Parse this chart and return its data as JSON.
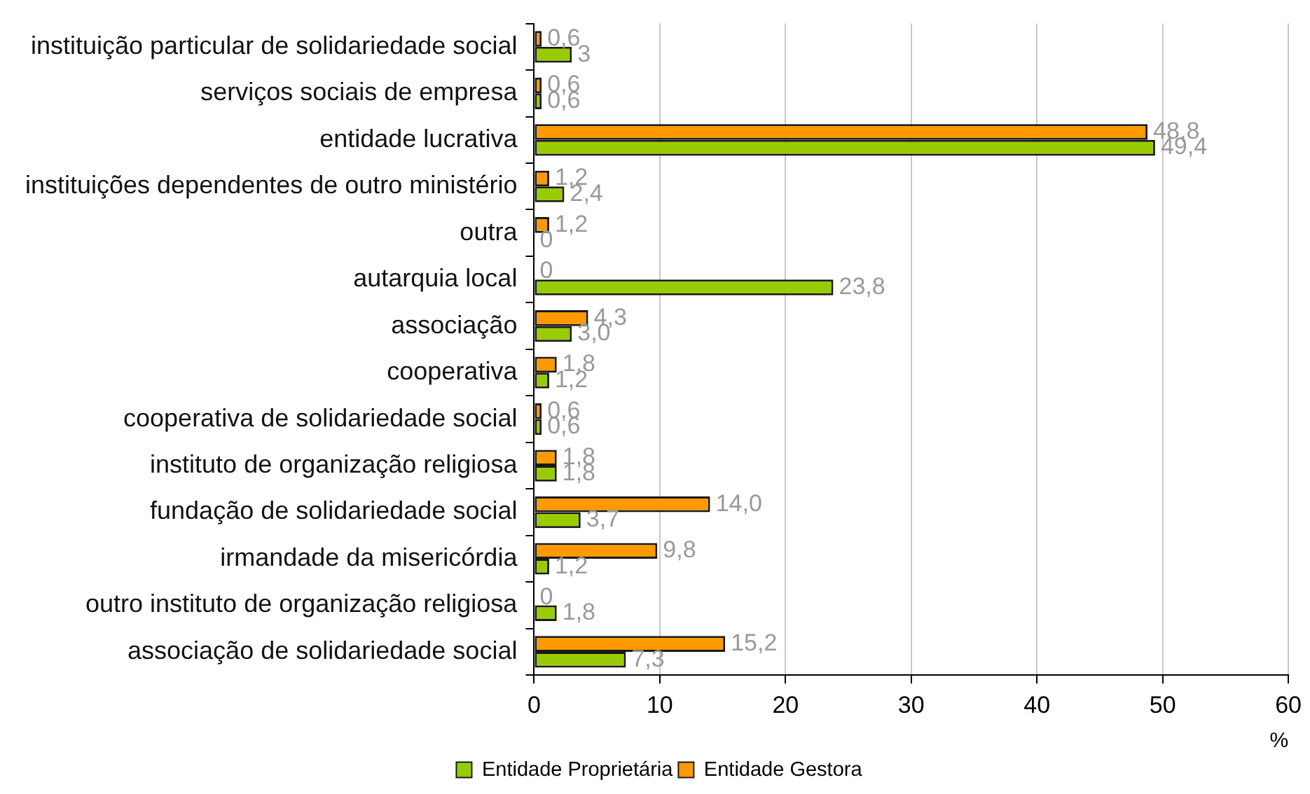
{
  "chart_data": {
    "type": "bar",
    "orientation": "horizontal",
    "xlabel": "%",
    "categories": [
      "instituição particular de solidariedade social",
      "serviços sociais de empresa",
      "entidade lucrativa",
      "instituições dependentes de outro ministério",
      "outra",
      "autarquia local",
      "associação",
      "cooperativa",
      "cooperativa de solidariedade social",
      "instituto de organização religiosa",
      "fundação de solidariedade social",
      "irmandade da misericórdia",
      "outro instituto de organização religiosa",
      "associação de solidariedade social"
    ],
    "series": [
      {
        "name": "Entidade Proprietária",
        "color": "#99cc00",
        "values": [
          3,
          0.6,
          49.4,
          2.4,
          0,
          23.8,
          3.0,
          1.2,
          0.6,
          1.8,
          3.7,
          1.2,
          1.8,
          7.3
        ],
        "value_labels": [
          "3",
          "0,6",
          "49,4",
          "2,4",
          "0",
          "23,8",
          "3,0",
          "1,2",
          "0,6",
          "1,8",
          "3,7",
          "1,2",
          "1,8",
          "7,3"
        ]
      },
      {
        "name": "Entidade Gestora",
        "color": "#ff9900",
        "values": [
          0.6,
          0.6,
          48.8,
          1.2,
          1.2,
          0,
          4.3,
          1.8,
          0.6,
          1.8,
          14.0,
          9.8,
          0,
          15.2
        ],
        "value_labels": [
          "0,6",
          "0,6",
          "48,8",
          "1,2",
          "1,2",
          "0",
          "4,3",
          "1,8",
          "0,6",
          "1,8",
          "14,0",
          "9,8",
          "0",
          "15,2"
        ]
      }
    ],
    "xlim": [
      0,
      60
    ],
    "xticks": [
      0,
      10,
      20,
      30,
      40,
      50,
      60
    ],
    "grid": "x",
    "legend": "bottom"
  }
}
